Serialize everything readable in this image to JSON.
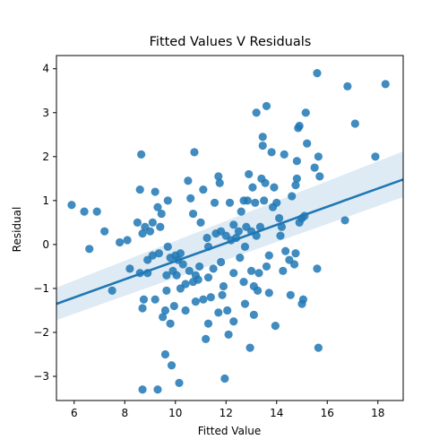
{
  "chart_data": {
    "type": "scatter",
    "title": "Fitted Values V Residuals",
    "xlabel": "Fitted Value",
    "ylabel": "Residual",
    "xlim": [
      5.3,
      19.0
    ],
    "ylim": [
      -3.55,
      4.3
    ],
    "xticks": [
      6,
      8,
      10,
      12,
      14,
      16,
      18
    ],
    "yticks": [
      -3,
      -2,
      -1,
      0,
      1,
      2,
      3,
      4
    ],
    "grid": false,
    "legend": "none",
    "colors": {
      "point": "#1f77b4",
      "line": "#1f77b4",
      "band": "#1f77b4"
    },
    "regression": {
      "x": [
        5.3,
        19.0
      ],
      "y": [
        -1.35,
        1.48
      ],
      "ci_lower": [
        -1.72,
        1.08
      ],
      "ci_upper": [
        -0.98,
        2.12
      ]
    },
    "points": [
      [
        5.9,
        0.9
      ],
      [
        6.4,
        0.75
      ],
      [
        6.6,
        -0.1
      ],
      [
        6.9,
        0.75
      ],
      [
        7.2,
        0.3
      ],
      [
        7.5,
        -1.05
      ],
      [
        7.8,
        0.05
      ],
      [
        8.1,
        0.1
      ],
      [
        8.2,
        -0.55
      ],
      [
        8.5,
        0.5
      ],
      [
        8.6,
        1.25
      ],
      [
        8.65,
        2.05
      ],
      [
        8.6,
        -0.65
      ],
      [
        8.7,
        -3.3
      ],
      [
        8.7,
        0.25
      ],
      [
        8.75,
        -1.25
      ],
      [
        8.8,
        0.4
      ],
      [
        8.7,
        -1.45
      ],
      [
        8.9,
        -0.65
      ],
      [
        8.9,
        -0.35
      ],
      [
        9.0,
        0.3
      ],
      [
        9.1,
        -0.25
      ],
      [
        9.1,
        0.5
      ],
      [
        9.2,
        1.2
      ],
      [
        9.2,
        -1.25
      ],
      [
        9.3,
        -3.3
      ],
      [
        9.3,
        0.85
      ],
      [
        9.35,
        -0.2
      ],
      [
        9.4,
        0.4
      ],
      [
        9.45,
        0.7
      ],
      [
        9.5,
        -1.65
      ],
      [
        9.6,
        -2.5
      ],
      [
        9.6,
        -1.5
      ],
      [
        9.65,
        -1.05
      ],
      [
        9.65,
        -0.7
      ],
      [
        9.7,
        1.0
      ],
      [
        9.7,
        -0.05
      ],
      [
        9.8,
        -1.8
      ],
      [
        9.85,
        -2.75
      ],
      [
        9.8,
        -0.3
      ],
      [
        9.9,
        -0.6
      ],
      [
        9.95,
        -1.4
      ],
      [
        10.0,
        -0.25
      ],
      [
        10.05,
        -0.7
      ],
      [
        10.1,
        -0.35
      ],
      [
        10.15,
        -3.15
      ],
      [
        10.2,
        -0.2
      ],
      [
        10.2,
        -1.0
      ],
      [
        10.3,
        -0.45
      ],
      [
        10.4,
        -0.9
      ],
      [
        10.4,
        -1.5
      ],
      [
        10.5,
        1.45
      ],
      [
        10.55,
        -0.6
      ],
      [
        10.6,
        1.05
      ],
      [
        10.7,
        0.7
      ],
      [
        10.75,
        2.1
      ],
      [
        10.7,
        -0.85
      ],
      [
        10.8,
        -0.7
      ],
      [
        10.8,
        -1.3
      ],
      [
        10.9,
        -0.8
      ],
      [
        10.95,
        -0.5
      ],
      [
        11.0,
        0.5
      ],
      [
        11.1,
        1.25
      ],
      [
        11.1,
        -1.25
      ],
      [
        11.2,
        -2.15
      ],
      [
        11.25,
        0.15
      ],
      [
        11.3,
        -0.75
      ],
      [
        11.3,
        -1.8
      ],
      [
        11.3,
        -0.05
      ],
      [
        11.4,
        -1.2
      ],
      [
        11.5,
        -0.55
      ],
      [
        11.55,
        0.95
      ],
      [
        11.6,
        0.25
      ],
      [
        11.7,
        1.55
      ],
      [
        11.7,
        -1.55
      ],
      [
        11.75,
        1.4
      ],
      [
        11.8,
        0.3
      ],
      [
        11.8,
        -0.4
      ],
      [
        11.85,
        -1.15
      ],
      [
        11.9,
        -0.95
      ],
      [
        11.95,
        -3.05
      ],
      [
        12.0,
        0.2
      ],
      [
        12.1,
        -2.05
      ],
      [
        12.05,
        -1.5
      ],
      [
        12.15,
        0.95
      ],
      [
        12.2,
        0.1
      ],
      [
        12.3,
        0.45
      ],
      [
        12.3,
        -0.65
      ],
      [
        12.3,
        -1.75
      ],
      [
        12.4,
        0.15
      ],
      [
        12.5,
        0.3
      ],
      [
        12.55,
        -0.3
      ],
      [
        12.6,
        0.75
      ],
      [
        12.7,
        1.0
      ],
      [
        12.7,
        -0.85
      ],
      [
        12.75,
        -1.35
      ],
      [
        12.75,
        -0.05
      ],
      [
        12.8,
        0.4
      ],
      [
        12.85,
        1.0
      ],
      [
        12.9,
        1.6
      ],
      [
        12.95,
        -2.35
      ],
      [
        13.0,
        -0.6
      ],
      [
        13.0,
        0.3
      ],
      [
        13.05,
        1.3
      ],
      [
        13.1,
        -1.6
      ],
      [
        13.1,
        -0.95
      ],
      [
        13.15,
        0.95
      ],
      [
        13.2,
        0.2
      ],
      [
        13.2,
        3.0
      ],
      [
        13.25,
        -1.05
      ],
      [
        13.3,
        -0.65
      ],
      [
        13.35,
        0.4
      ],
      [
        13.4,
        1.5
      ],
      [
        13.45,
        2.25
      ],
      [
        13.45,
        2.45
      ],
      [
        13.5,
        1.0
      ],
      [
        13.55,
        1.4
      ],
      [
        13.6,
        3.15
      ],
      [
        13.6,
        -0.5
      ],
      [
        13.7,
        -0.25
      ],
      [
        13.7,
        -1.1
      ],
      [
        13.8,
        2.1
      ],
      [
        13.85,
        0.85
      ],
      [
        13.9,
        1.3
      ],
      [
        13.95,
        -1.85
      ],
      [
        14.0,
        0.95
      ],
      [
        14.1,
        0.6
      ],
      [
        14.15,
        0.2
      ],
      [
        14.2,
        0.4
      ],
      [
        14.25,
        -0.6
      ],
      [
        14.3,
        2.05
      ],
      [
        14.35,
        -0.15
      ],
      [
        14.5,
        -0.35
      ],
      [
        14.55,
        -1.15
      ],
      [
        14.6,
        1.1
      ],
      [
        14.7,
        -0.45
      ],
      [
        14.75,
        -0.2
      ],
      [
        14.75,
        1.35
      ],
      [
        14.8,
        1.9
      ],
      [
        14.85,
        2.65
      ],
      [
        14.9,
        2.7
      ],
      [
        14.9,
        0.5
      ],
      [
        14.8,
        1.5
      ],
      [
        15.0,
        0.6
      ],
      [
        15.0,
        -1.35
      ],
      [
        15.05,
        -1.25
      ],
      [
        15.1,
        0.65
      ],
      [
        15.15,
        3.0
      ],
      [
        15.2,
        2.3
      ],
      [
        15.5,
        1.75
      ],
      [
        15.6,
        -0.55
      ],
      [
        15.6,
        3.9
      ],
      [
        15.65,
        -2.35
      ],
      [
        15.65,
        2.0
      ],
      [
        15.7,
        1.55
      ],
      [
        16.7,
        0.55
      ],
      [
        16.8,
        3.6
      ],
      [
        17.1,
        2.75
      ],
      [
        17.9,
        2.0
      ],
      [
        18.3,
        3.65
      ]
    ]
  }
}
